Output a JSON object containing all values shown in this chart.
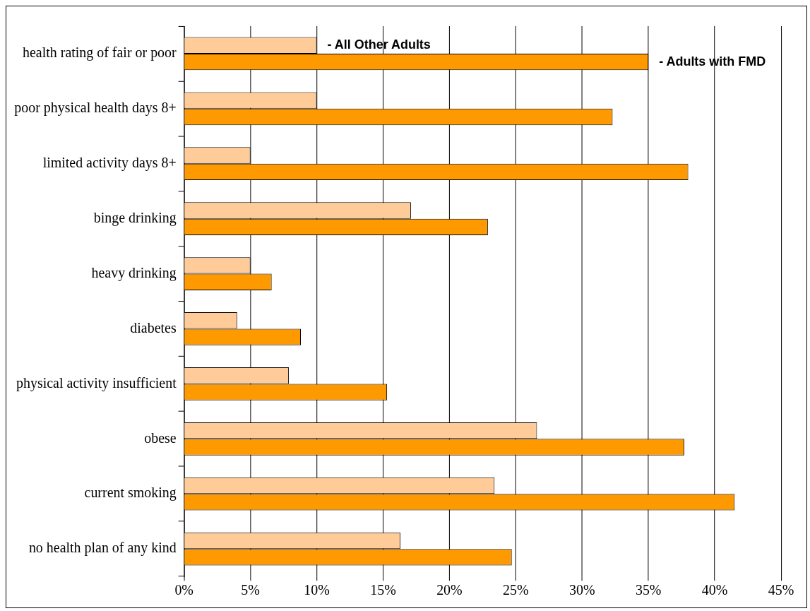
{
  "chart_data": {
    "type": "bar",
    "orientation": "horizontal",
    "categories": [
      "health rating of fair or poor",
      "poor physical health days 8+",
      "limited activity days 8+",
      "binge drinking",
      "heavy drinking",
      "diabetes",
      "physical activity insufficient",
      "obese",
      "current smoking",
      "no health plan of any kind"
    ],
    "series": [
      {
        "name": "- All Other Adults",
        "color": "#ffcc99",
        "values": [
          10,
          10,
          5,
          17.1,
          5,
          4,
          7.9,
          26.6,
          23.4,
          16.3
        ]
      },
      {
        "name": "- Adults with FMD",
        "color": "#ff9900",
        "values": [
          35,
          32.3,
          38,
          22.9,
          6.6,
          8.8,
          15.3,
          37.7,
          41.5,
          24.7
        ]
      }
    ],
    "xlim": [
      0,
      45
    ],
    "xticks": [
      {
        "value": 0,
        "label": "0%"
      },
      {
        "value": 5,
        "label": "5%"
      },
      {
        "value": 10,
        "label": "10%"
      },
      {
        "value": 15,
        "label": "15%"
      },
      {
        "value": 20,
        "label": "20%"
      },
      {
        "value": 25,
        "label": "25%"
      },
      {
        "value": 30,
        "label": "30%"
      },
      {
        "value": 35,
        "label": "35%"
      },
      {
        "value": 40,
        "label": "40%"
      },
      {
        "value": 45,
        "label": "45%"
      }
    ],
    "grid": "x",
    "legend": false
  }
}
